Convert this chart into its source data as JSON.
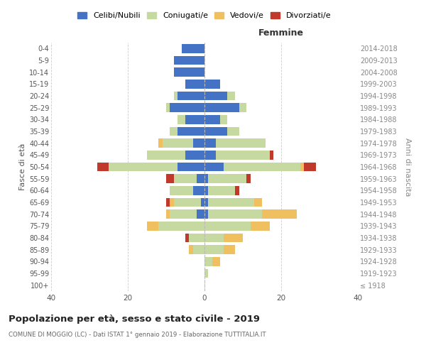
{
  "age_groups": [
    "100+",
    "95-99",
    "90-94",
    "85-89",
    "80-84",
    "75-79",
    "70-74",
    "65-69",
    "60-64",
    "55-59",
    "50-54",
    "45-49",
    "40-44",
    "35-39",
    "30-34",
    "25-29",
    "20-24",
    "15-19",
    "10-14",
    "5-9",
    "0-4"
  ],
  "birth_years": [
    "≤ 1918",
    "1919-1923",
    "1924-1928",
    "1929-1933",
    "1934-1938",
    "1939-1943",
    "1944-1948",
    "1949-1953",
    "1954-1958",
    "1959-1963",
    "1964-1968",
    "1969-1973",
    "1974-1978",
    "1979-1983",
    "1984-1988",
    "1989-1993",
    "1994-1998",
    "1999-2003",
    "2004-2008",
    "2009-2013",
    "2014-2018"
  ],
  "colors": {
    "celibi": "#4472c4",
    "coniugati": "#c5d9a0",
    "vedovi": "#f0c060",
    "divorziati": "#c0392b"
  },
  "males": {
    "celibi": [
      0,
      0,
      0,
      0,
      0,
      0,
      2,
      1,
      3,
      2,
      7,
      5,
      3,
      7,
      5,
      9,
      7,
      5,
      8,
      8,
      6
    ],
    "coniugati": [
      0,
      0,
      0,
      3,
      4,
      12,
      7,
      7,
      6,
      6,
      18,
      10,
      8,
      2,
      2,
      1,
      1,
      0,
      0,
      0,
      0
    ],
    "vedovi": [
      0,
      0,
      0,
      1,
      0,
      3,
      1,
      1,
      0,
      0,
      0,
      0,
      1,
      0,
      0,
      0,
      0,
      0,
      0,
      0,
      0
    ],
    "divorziati": [
      0,
      0,
      0,
      0,
      1,
      0,
      0,
      1,
      0,
      2,
      3,
      0,
      0,
      0,
      0,
      0,
      0,
      0,
      0,
      0,
      0
    ]
  },
  "females": {
    "celibi": [
      0,
      0,
      0,
      0,
      0,
      0,
      1,
      1,
      1,
      1,
      5,
      3,
      3,
      6,
      4,
      9,
      6,
      4,
      0,
      0,
      0
    ],
    "coniugati": [
      0,
      1,
      2,
      5,
      5,
      12,
      14,
      12,
      7,
      10,
      20,
      14,
      13,
      3,
      2,
      2,
      2,
      0,
      0,
      0,
      0
    ],
    "vedovi": [
      0,
      0,
      2,
      3,
      5,
      5,
      9,
      2,
      0,
      0,
      1,
      0,
      0,
      0,
      0,
      0,
      0,
      0,
      0,
      0,
      0
    ],
    "divorziati": [
      0,
      0,
      0,
      0,
      0,
      0,
      0,
      0,
      1,
      1,
      3,
      1,
      0,
      0,
      0,
      0,
      0,
      0,
      0,
      0,
      0
    ]
  },
  "title": "Popolazione per età, sesso e stato civile - 2019",
  "subtitle": "COMUNE DI MOGGIO (LC) - Dati ISTAT 1° gennaio 2019 - Elaborazione TUTTITALIA.IT",
  "xlabel_right": "Femmine",
  "ylabel_left": "Fasce di età",
  "ylabel_right": "Anni di nascita",
  "xlim": 40,
  "background_color": "#ffffff",
  "legend_labels": [
    "Celibi/Nubili",
    "Coniugati/e",
    "Vedovi/e",
    "Divorziati/e"
  ]
}
